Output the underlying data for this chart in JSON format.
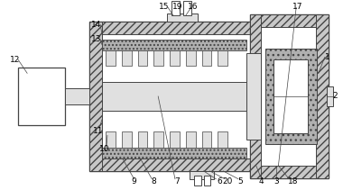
{
  "figsize": [
    3.8,
    2.11
  ],
  "dpi": 100,
  "bg_color": "#ffffff",
  "lc": "#444444",
  "hatch_gray": "#c8c8c8",
  "dot_gray": "#b0b0b0",
  "white": "#ffffff",
  "light_gray": "#e0e0e0"
}
